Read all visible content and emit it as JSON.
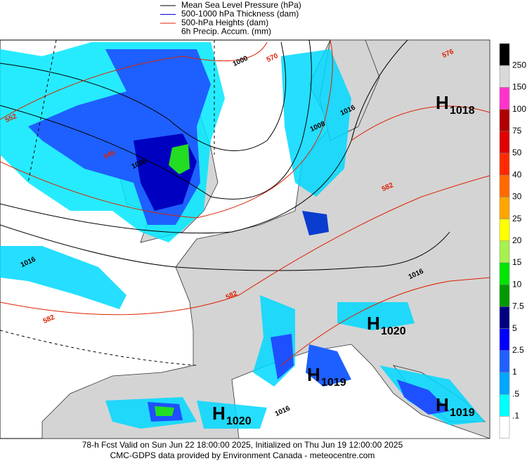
{
  "legend": [
    {
      "label": "Mean Sea Level Pressure (hPa)",
      "color": "#000000"
    },
    {
      "label": "500-1000 hPa Thickness (dam)",
      "color": "#0000cc"
    },
    {
      "label": "500-hPa Heights (dam)",
      "color": "#dd2200"
    },
    {
      "label": "6h Precip. Accum. (mm)"
    }
  ],
  "colorbar": {
    "colors": [
      "#000000",
      "#d9d9d9",
      "#ff33cc",
      "#b00000",
      "#e00000",
      "#ff2a00",
      "#ff6a00",
      "#ffa500",
      "#ffff00",
      "#a6f050",
      "#00e600",
      "#009900",
      "#000080",
      "#0000ff",
      "#2060ff",
      "#00a8ff",
      "#00ffff",
      "#ffffff"
    ],
    "labels": [
      "250",
      "150",
      "100",
      "75",
      "50",
      "40",
      "30",
      "25",
      "20",
      "15",
      "10",
      "7.5",
      "5",
      "2.5",
      "1",
      ".5",
      ".1"
    ]
  },
  "highs": [
    {
      "letter": "H",
      "value": "1018"
    },
    {
      "letter": "H",
      "value": "1020"
    },
    {
      "letter": "H",
      "value": "1019"
    },
    {
      "letter": "H",
      "value": "1020"
    },
    {
      "letter": "H",
      "value": "1019"
    }
  ],
  "contour_labels": [
    {
      "text": "1000",
      "color": "#000000"
    },
    {
      "text": "1008",
      "color": "#000000"
    },
    {
      "text": "1008",
      "color": "#000000"
    },
    {
      "text": "1016",
      "color": "#000000"
    },
    {
      "text": "1016",
      "color": "#000000"
    },
    {
      "text": "1016",
      "color": "#000000"
    },
    {
      "text": "1016",
      "color": "#000000"
    },
    {
      "text": "552",
      "color": "#dd2200"
    },
    {
      "text": "546",
      "color": "#dd2200"
    },
    {
      "text": "570",
      "color": "#dd2200"
    },
    {
      "text": "576",
      "color": "#dd2200"
    },
    {
      "text": "582",
      "color": "#dd2200"
    },
    {
      "text": "582",
      "color": "#dd2200"
    },
    {
      "text": "582",
      "color": "#dd2200"
    }
  ],
  "footer": [
    "78-h Fcst Valid on Sun Jun 22 18:00:00 2025, Initialized on Thu Jun 19 12:00:00 2025",
    "CMC-GDPS data provided by Environment Canada - meteocentre.com"
  ]
}
